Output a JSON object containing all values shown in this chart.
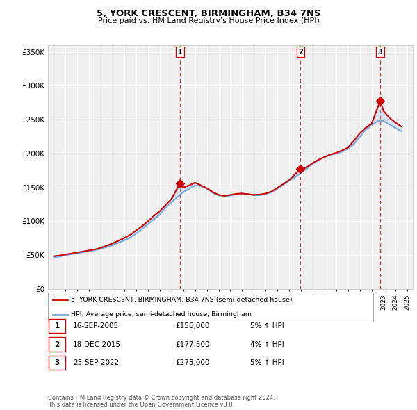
{
  "title": "5, YORK CRESCENT, BIRMINGHAM, B34 7NS",
  "subtitle": "Price paid vs. HM Land Registry's House Price Index (HPI)",
  "ylabel_ticks": [
    "£0",
    "£50K",
    "£100K",
    "£150K",
    "£200K",
    "£250K",
    "£300K",
    "£350K"
  ],
  "ytick_values": [
    0,
    50000,
    100000,
    150000,
    200000,
    250000,
    300000,
    350000
  ],
  "ylim": [
    0,
    360000
  ],
  "xlim_start": 1994.5,
  "xlim_end": 2025.5,
  "sale_dates": [
    2005.71,
    2015.96,
    2022.73
  ],
  "sale_prices": [
    156000,
    177500,
    278000
  ],
  "sale_labels": [
    "1",
    "2",
    "3"
  ],
  "hpi_line_color": "#7aaadd",
  "price_line_color": "#cc0000",
  "dashed_line_color": "#cc0000",
  "fill_color": "#aaccee",
  "background_color": "#f0f0f0",
  "grid_color": "#ffffff",
  "legend_entries": [
    "5, YORK CRESCENT, BIRMINGHAM, B34 7NS (semi-detached house)",
    "HPI: Average price, semi-detached house, Birmingham"
  ],
  "table_rows": [
    [
      "1",
      "16-SEP-2005",
      "£156,000",
      "5% ↑ HPI"
    ],
    [
      "2",
      "18-DEC-2015",
      "£177,500",
      "4% ↑ HPI"
    ],
    [
      "3",
      "23-SEP-2022",
      "£278,000",
      "5% ↑ HPI"
    ]
  ],
  "footnote": "Contains HM Land Registry data © Crown copyright and database right 2024.\nThis data is licensed under the Open Government Licence v3.0.",
  "hpi_x": [
    1995.0,
    1995.5,
    1996.0,
    1996.5,
    1997.0,
    1997.5,
    1998.0,
    1998.5,
    1999.0,
    1999.5,
    2000.0,
    2000.5,
    2001.0,
    2001.5,
    2002.0,
    2002.5,
    2003.0,
    2003.5,
    2004.0,
    2004.5,
    2005.0,
    2005.5,
    2006.0,
    2006.5,
    2007.0,
    2007.5,
    2008.0,
    2008.5,
    2009.0,
    2009.5,
    2010.0,
    2010.5,
    2011.0,
    2011.5,
    2012.0,
    2012.5,
    2013.0,
    2013.5,
    2014.0,
    2014.5,
    2015.0,
    2015.5,
    2016.0,
    2016.5,
    2017.0,
    2017.5,
    2018.0,
    2018.5,
    2019.0,
    2019.5,
    2020.0,
    2020.5,
    2021.0,
    2021.5,
    2022.0,
    2022.5,
    2023.0,
    2023.5,
    2024.0,
    2024.5
  ],
  "hpi_y": [
    47000,
    48000,
    50000,
    51500,
    53000,
    54500,
    56000,
    57500,
    59500,
    62000,
    65000,
    68500,
    72000,
    76000,
    82000,
    89000,
    96000,
    103000,
    110000,
    120000,
    128000,
    136000,
    143000,
    148000,
    153000,
    152000,
    148000,
    142000,
    138000,
    137000,
    138000,
    140000,
    141000,
    140000,
    138500,
    138500,
    140000,
    143000,
    148000,
    154000,
    160000,
    165000,
    172000,
    178000,
    185000,
    190000,
    195000,
    198000,
    200000,
    203000,
    207000,
    214000,
    225000,
    235000,
    242000,
    248000,
    248000,
    243000,
    238000,
    233000
  ],
  "price_x": [
    1995.0,
    1995.5,
    1996.0,
    1996.5,
    1997.0,
    1997.5,
    1998.0,
    1998.5,
    1999.0,
    1999.5,
    2000.0,
    2000.5,
    2001.0,
    2001.5,
    2002.0,
    2002.5,
    2003.0,
    2003.5,
    2004.0,
    2004.5,
    2005.0,
    2005.71,
    2006.0,
    2006.5,
    2007.0,
    2007.5,
    2008.0,
    2008.5,
    2009.0,
    2009.5,
    2010.0,
    2010.5,
    2011.0,
    2011.5,
    2012.0,
    2012.5,
    2013.0,
    2013.5,
    2014.0,
    2014.5,
    2015.0,
    2015.96,
    2016.0,
    2016.5,
    2017.0,
    2017.5,
    2018.0,
    2018.5,
    2019.0,
    2019.5,
    2020.0,
    2020.5,
    2021.0,
    2021.5,
    2022.0,
    2022.73,
    2023.0,
    2023.5,
    2024.0,
    2024.5
  ],
  "price_y": [
    48500,
    49500,
    51000,
    52500,
    54000,
    55500,
    57000,
    58500,
    61000,
    64000,
    67500,
    71500,
    75500,
    80000,
    86500,
    93000,
    100000,
    108000,
    115000,
    124000,
    133000,
    156000,
    150000,
    153000,
    157000,
    153000,
    149000,
    143000,
    139000,
    137500,
    139000,
    140500,
    141000,
    140000,
    139000,
    139500,
    141000,
    144000,
    149500,
    155000,
    161000,
    177500,
    176000,
    180000,
    186000,
    191000,
    195000,
    198500,
    201000,
    204500,
    209000,
    219000,
    230000,
    238000,
    244000,
    278000,
    263000,
    253000,
    246000,
    240000
  ]
}
